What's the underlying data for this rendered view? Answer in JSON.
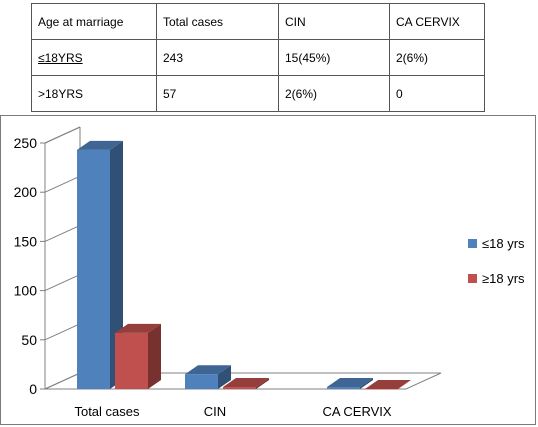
{
  "table": {
    "headers": [
      "Age at marriage",
      "Total cases",
      "CIN",
      "CA CERVIX"
    ],
    "rows": [
      [
        "≤18YRS",
        "243",
        "15(45%)",
        "2(6%)"
      ],
      [
        ">18YRS",
        "57",
        "2(6%)",
        "0"
      ]
    ]
  },
  "chart_data": {
    "type": "bar",
    "categories": [
      "Total cases",
      "CIN",
      "CA CERVIX"
    ],
    "series": [
      {
        "name": "≤18 yrs",
        "values": [
          243,
          15,
          2
        ],
        "color": "#4F81BD"
      },
      {
        "name": "≥18 yrs",
        "values": [
          57,
          2,
          0
        ],
        "color": "#C0504D"
      }
    ],
    "yticks": [
      0,
      50,
      100,
      150,
      200,
      250
    ],
    "ylim": [
      0,
      250
    ],
    "legend": "right",
    "grid": false,
    "three_d": true
  }
}
